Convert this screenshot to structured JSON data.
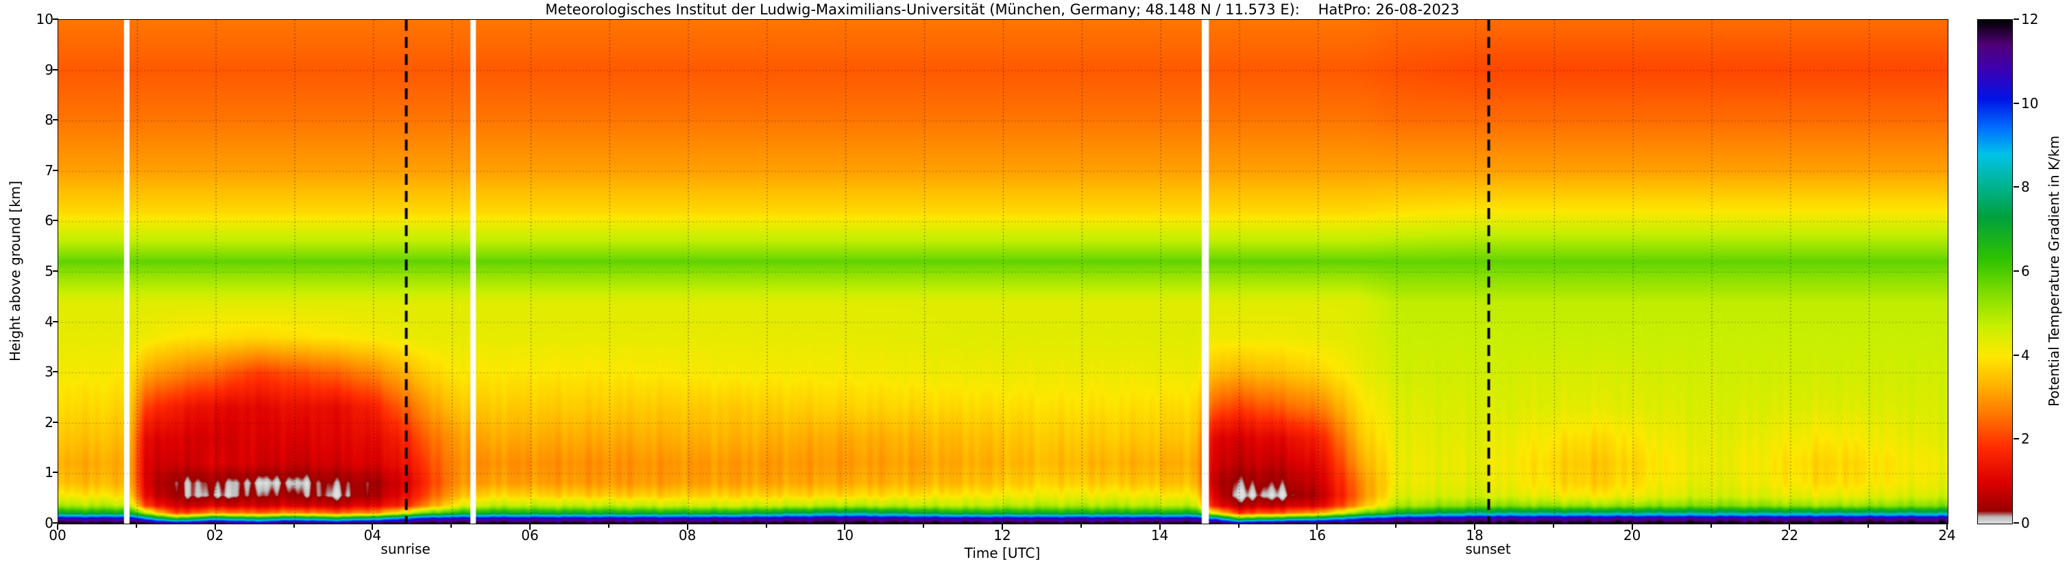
{
  "title": "Meteorologisches Institut der Ludwig-Maximilians-Universität (München, Germany; 48.148 N / 11.573 E):    HatPro: 26-08-2023",
  "axes": {
    "x_label": "Time [UTC]",
    "y_label": "Height above ground [km]",
    "cbar_label": "Potential Temperature Gradient in K/km",
    "x_ticks": [
      {
        "v": 0,
        "label": "00"
      },
      {
        "v": 2,
        "label": "02"
      },
      {
        "v": 4,
        "label": "04"
      },
      {
        "v": 6,
        "label": "06"
      },
      {
        "v": 8,
        "label": "08"
      },
      {
        "v": 10,
        "label": "10"
      },
      {
        "v": 12,
        "label": "12"
      },
      {
        "v": 14,
        "label": "14"
      },
      {
        "v": 16,
        "label": "16"
      },
      {
        "v": 18,
        "label": "18"
      },
      {
        "v": 20,
        "label": "20"
      },
      {
        "v": 22,
        "label": "22"
      },
      {
        "v": 24,
        "label": "24"
      }
    ],
    "x_minor_step": 1,
    "y_ticks": [
      {
        "v": 0,
        "label": "0"
      },
      {
        "v": 1,
        "label": "1"
      },
      {
        "v": 2,
        "label": "2"
      },
      {
        "v": 3,
        "label": "3"
      },
      {
        "v": 4,
        "label": "4"
      },
      {
        "v": 5,
        "label": "5"
      },
      {
        "v": 6,
        "label": "6"
      },
      {
        "v": 7,
        "label": "7"
      },
      {
        "v": 8,
        "label": "8"
      },
      {
        "v": 9,
        "label": "9"
      },
      {
        "v": 10,
        "label": "10"
      }
    ],
    "cbar_ticks": [
      {
        "v": 0,
        "label": "0"
      },
      {
        "v": 2,
        "label": "2"
      },
      {
        "v": 4,
        "label": "4"
      },
      {
        "v": 6,
        "label": "6"
      },
      {
        "v": 8,
        "label": "8"
      },
      {
        "v": 10,
        "label": "10"
      },
      {
        "v": 12,
        "label": "12"
      }
    ]
  },
  "annotations": {
    "sunrise": {
      "label": "sunrise",
      "t": 4.42
    },
    "sunset": {
      "label": "sunset",
      "t": 18.17
    }
  },
  "chart_data": {
    "type": "heatmap",
    "x_unit": "hours UTC",
    "y_unit": "km above ground",
    "value_unit": "K/km",
    "x_range": [
      0,
      24
    ],
    "y_range": [
      0,
      10
    ],
    "v_range": [
      0,
      12
    ],
    "grid": {
      "x_minor_every": 1,
      "y_every": 1
    },
    "times": [
      0,
      0.5,
      0.9,
      1.1,
      1.5,
      2,
      2.5,
      3,
      3.5,
      4,
      4.3,
      4.6,
      5,
      5.4,
      7,
      8.5,
      10,
      11.5,
      12.5,
      13.5,
      14.45,
      14.7,
      15,
      15.6,
      16.1,
      16.5,
      17,
      18,
      19.5,
      21,
      22.5,
      24
    ],
    "heights": [
      0,
      0.1,
      0.2,
      0.35,
      0.55,
      0.8,
      1.2,
      1.7,
      2.3,
      3.0,
      3.7,
      4.4,
      4.9,
      5.2,
      5.6,
      6.2,
      7.0,
      8.0,
      9.0,
      10.0
    ],
    "values": [
      [
        12,
        10.5,
        7,
        5,
        4,
        3.4,
        3.2,
        3.5,
        3.8,
        4.1,
        4.3,
        4.4,
        5.2,
        5.8,
        4.8,
        3.8,
        3.1,
        2.6,
        2.3,
        2.6
      ],
      [
        12,
        10.5,
        7,
        5,
        4,
        3.4,
        3.2,
        3.5,
        3.8,
        4.1,
        4.3,
        4.4,
        5.2,
        5.8,
        4.8,
        3.8,
        3.1,
        2.6,
        2.3,
        2.6
      ],
      [
        12,
        10.5,
        7,
        4.8,
        3.8,
        3.3,
        3.2,
        3.4,
        3.7,
        4,
        4.3,
        4.4,
        5.2,
        5.8,
        4.8,
        3.8,
        3.1,
        2.6,
        2.3,
        2.6
      ],
      [
        12,
        9,
        5,
        2,
        1.2,
        1,
        1,
        1.2,
        2,
        3.2,
        4.2,
        4.4,
        5.2,
        5.8,
        4.8,
        3.8,
        3.1,
        2.6,
        2.3,
        2.6
      ],
      [
        11,
        6,
        2,
        0.8,
        0.3,
        0.2,
        0.8,
        1,
        1.5,
        2.8,
        4,
        4.4,
        5.2,
        5.8,
        4.8,
        3.8,
        3.1,
        2.6,
        2.3,
        2.6
      ],
      [
        12,
        8,
        3,
        1,
        0.1,
        0.3,
        1,
        0.9,
        1.2,
        2.5,
        3.9,
        4.4,
        5.2,
        5.8,
        4.8,
        3.8,
        3.1,
        2.6,
        2.3,
        2.6
      ],
      [
        11,
        7,
        2.5,
        0.9,
        0.3,
        0.1,
        0.9,
        1,
        1.1,
        2,
        3.8,
        4.4,
        5.2,
        5.8,
        4.8,
        3.8,
        3.1,
        2.6,
        2.3,
        2.6
      ],
      [
        12,
        8,
        3,
        1,
        0.4,
        0.1,
        0.8,
        1,
        1.3,
        2.2,
        3.9,
        4.4,
        5.2,
        5.8,
        4.8,
        3.8,
        3.1,
        2.6,
        2.3,
        2.6
      ],
      [
        11.5,
        7,
        2.5,
        0.8,
        0.1,
        0.3,
        0.9,
        1.1,
        1.2,
        2.4,
        4,
        4.4,
        5.2,
        5.8,
        4.8,
        3.8,
        3.1,
        2.6,
        2.3,
        2.6
      ],
      [
        12,
        8,
        3,
        1.2,
        0.5,
        0.4,
        1,
        1.2,
        1.6,
        2.8,
        4.1,
        4.4,
        5.2,
        5.8,
        4.8,
        3.8,
        3.1,
        2.6,
        2.3,
        2.6
      ],
      [
        12,
        9,
        4,
        1.5,
        1,
        0.8,
        1.2,
        1.5,
        2.2,
        3.2,
        4.2,
        4.4,
        5.2,
        5.8,
        4.8,
        3.8,
        3.1,
        2.6,
        2.3,
        2.6
      ],
      [
        12,
        10,
        5.5,
        2.5,
        1.8,
        1.5,
        1.8,
        2.2,
        2.8,
        3.6,
        4.3,
        4.4,
        5.2,
        5.8,
        4.8,
        3.8,
        3.1,
        2.6,
        2.3,
        2.6
      ],
      [
        12,
        10.5,
        6.5,
        4,
        3.2,
        2.8,
        2.8,
        3,
        3.5,
        4,
        4.3,
        4.4,
        5.2,
        5.8,
        4.8,
        3.8,
        3.1,
        2.6,
        2.3,
        2.6
      ],
      [
        12,
        10.5,
        7,
        4.8,
        3.8,
        3.1,
        2.9,
        3.2,
        3.6,
        4,
        4.3,
        4.4,
        5.2,
        5.8,
        4.8,
        3.8,
        3.1,
        2.6,
        2.3,
        2.6
      ],
      [
        12,
        10.5,
        7,
        4.8,
        3.6,
        3,
        2.9,
        3.2,
        3.6,
        4,
        4.3,
        4.4,
        5.2,
        5.8,
        4.8,
        3.8,
        3.1,
        2.6,
        2.3,
        2.6
      ],
      [
        12,
        10.5,
        7,
        4.6,
        3.7,
        3.1,
        3,
        3.3,
        3.6,
        4.1,
        4.3,
        4.4,
        5.2,
        5.8,
        4.8,
        3.8,
        3.1,
        2.6,
        2.3,
        2.6
      ],
      [
        12,
        11,
        8,
        5,
        3.8,
        3.2,
        3,
        3.2,
        3.7,
        4.1,
        4.3,
        4.4,
        5.2,
        5.8,
        4.8,
        3.8,
        3.1,
        2.6,
        2.3,
        2.6
      ],
      [
        12,
        10.5,
        7,
        4.8,
        4,
        3.4,
        3.2,
        3.4,
        3.8,
        4.2,
        4.4,
        4.4,
        5.2,
        5.8,
        4.8,
        3.8,
        3.1,
        2.6,
        2.3,
        2.6
      ],
      [
        12,
        10.5,
        7,
        5,
        4.2,
        3.7,
        3.4,
        3.6,
        3.9,
        4.2,
        4.4,
        4.4,
        5.2,
        5.8,
        4.8,
        3.8,
        3.1,
        2.6,
        2.3,
        2.6
      ],
      [
        12,
        10.5,
        7,
        5,
        4.2,
        3.6,
        3.3,
        3.6,
        3.9,
        4.2,
        4.4,
        4.4,
        5.2,
        5.8,
        4.8,
        3.8,
        3.1,
        2.6,
        2.3,
        2.6
      ],
      [
        12,
        10.5,
        7,
        4.8,
        4,
        3.4,
        3.2,
        3.5,
        3.8,
        4.2,
        4.4,
        4.4,
        5.2,
        5.8,
        4.8,
        3.8,
        3.1,
        2.6,
        2.3,
        2.6
      ],
      [
        12,
        9,
        4,
        1.2,
        0.8,
        0.5,
        0.8,
        1,
        2.2,
        3.4,
        4.2,
        4.4,
        5.2,
        5.8,
        4.8,
        3.8,
        3.1,
        2.6,
        2.3,
        2.6
      ],
      [
        11,
        6,
        2,
        0.6,
        0.05,
        0.3,
        0.7,
        1,
        2,
        3.3,
        4.2,
        4.4,
        5.2,
        5.8,
        4.8,
        3.8,
        3.1,
        2.6,
        2.3,
        2.6
      ],
      [
        12,
        7,
        2.5,
        0.8,
        0.1,
        0.4,
        0.8,
        1.2,
        2.4,
        3.5,
        4.2,
        4.4,
        5.2,
        5.8,
        4.8,
        3.8,
        3.1,
        2.6,
        2.3,
        2.6
      ],
      [
        12,
        8,
        3.5,
        1.2,
        0.8,
        1,
        1.3,
        1.8,
        2.8,
        3.8,
        4.3,
        4.4,
        5.2,
        5.8,
        4.8,
        3.8,
        3.1,
        2.6,
        2.3,
        2.6
      ],
      [
        12,
        9.5,
        5.5,
        3,
        2.5,
        2.6,
        3,
        3.4,
        3.8,
        4.2,
        4.4,
        4.4,
        5.2,
        5.8,
        4.8,
        3.8,
        3.1,
        2.6,
        2.3,
        2.6
      ],
      [
        12,
        10.5,
        7,
        5,
        4.4,
        4.2,
        4.2,
        4.3,
        4.4,
        4.6,
        4.7,
        4.8,
        5.4,
        5.8,
        4.9,
        3.9,
        3.1,
        2.5,
        2.2,
        2.5
      ],
      [
        12,
        11,
        8,
        5.5,
        4.6,
        4.4,
        4.3,
        4.4,
        4.5,
        4.6,
        4.7,
        4.8,
        5.4,
        5.8,
        5,
        4,
        3.1,
        2.5,
        2.1,
        2.5
      ],
      [
        12,
        11,
        8,
        5.2,
        4,
        3.6,
        3.5,
        3.8,
        4.3,
        4.5,
        4.7,
        4.8,
        5.4,
        5.8,
        5,
        4,
        3.1,
        2.5,
        2.1,
        2.5
      ],
      [
        12,
        11,
        8,
        5.5,
        4.6,
        4.4,
        4.3,
        4.4,
        4.5,
        4.6,
        4.7,
        4.8,
        5.4,
        5.8,
        5,
        4,
        3.1,
        2.5,
        2.1,
        2.5
      ],
      [
        12,
        11,
        8,
        5.2,
        4.2,
        3.8,
        3.7,
        4,
        4.4,
        4.6,
        4.7,
        4.8,
        5.4,
        5.8,
        5,
        4,
        3.1,
        2.5,
        2.1,
        2.5
      ],
      [
        12,
        11,
        8,
        5.5,
        4.6,
        4.3,
        4.2,
        4.4,
        4.5,
        4.6,
        4.7,
        4.8,
        5.4,
        5.8,
        5,
        4,
        3.1,
        2.5,
        2.1,
        2.5
      ]
    ],
    "colormap": [
      {
        "v": 0.0,
        "c": "#e0e0e0"
      },
      {
        "v": 0.15,
        "c": "#bbbbbb"
      },
      {
        "v": 0.3,
        "c": "#990000"
      },
      {
        "v": 1.0,
        "c": "#dd0000"
      },
      {
        "v": 1.8,
        "c": "#ff2a00"
      },
      {
        "v": 2.6,
        "c": "#ff7700"
      },
      {
        "v": 3.4,
        "c": "#ffbb00"
      },
      {
        "v": 4.0,
        "c": "#fde800"
      },
      {
        "v": 4.7,
        "c": "#c8ef00"
      },
      {
        "v": 5.5,
        "c": "#7fdd00"
      },
      {
        "v": 6.3,
        "c": "#2fc200"
      },
      {
        "v": 7.3,
        "c": "#00a03c"
      },
      {
        "v": 8.2,
        "c": "#00b7a0"
      },
      {
        "v": 8.8,
        "c": "#00c2e8"
      },
      {
        "v": 9.4,
        "c": "#0072ff"
      },
      {
        "v": 10.1,
        "c": "#0014e6"
      },
      {
        "v": 10.8,
        "c": "#3c00b4"
      },
      {
        "v": 11.4,
        "c": "#500078"
      },
      {
        "v": 12.0,
        "c": "#000000"
      }
    ],
    "data_gaps": [
      {
        "t": 0.87,
        "w": 0.07
      },
      {
        "t": 5.27,
        "w": 0.07
      },
      {
        "t": 14.57,
        "w": 0.09
      }
    ]
  }
}
